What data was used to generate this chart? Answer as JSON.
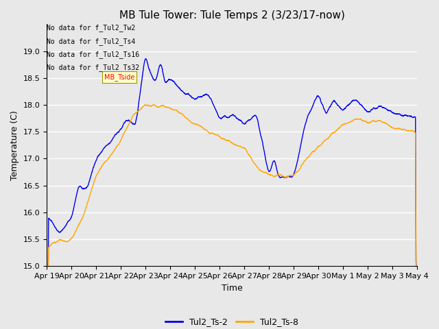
{
  "title": "MB Tule Tower: Tule Temps 2 (3/23/17-now)",
  "xlabel": "Time",
  "ylabel": "Temperature (C)",
  "ylim": [
    15.0,
    19.5
  ],
  "yticks": [
    15.0,
    15.5,
    16.0,
    16.5,
    17.0,
    17.5,
    18.0,
    18.5,
    19.0
  ],
  "xtick_labels": [
    "Apr 19",
    "Apr 20",
    "Apr 21",
    "Apr 22",
    "Apr 23",
    "Apr 24",
    "Apr 25",
    "Apr 26",
    "Apr 27",
    "Apr 28",
    "Apr 29",
    "Apr 30",
    "May 1",
    "May 2",
    "May 3",
    "May 4"
  ],
  "line1_color": "#0000EE",
  "line2_color": "#FFA500",
  "line1_label": "Tul2_Ts-2",
  "line2_label": "Tul2_Ts-8",
  "no_data_texts": [
    "No data for f_Tul2_Tw2",
    "No data for f_Tul2_Ts4",
    "No data for f_Tul2_Ts16",
    "No data for f_Tul2_Ts32"
  ],
  "tooltip_text": "MB_Tside",
  "background_color": "#E8E8E8",
  "plot_bg_color": "#E8E8E8",
  "grid_color": "#FFFFFF",
  "title_fontsize": 11,
  "axis_label_fontsize": 9,
  "tick_fontsize": 8,
  "nodata_fontsize": 7,
  "legend_fontsize": 9
}
